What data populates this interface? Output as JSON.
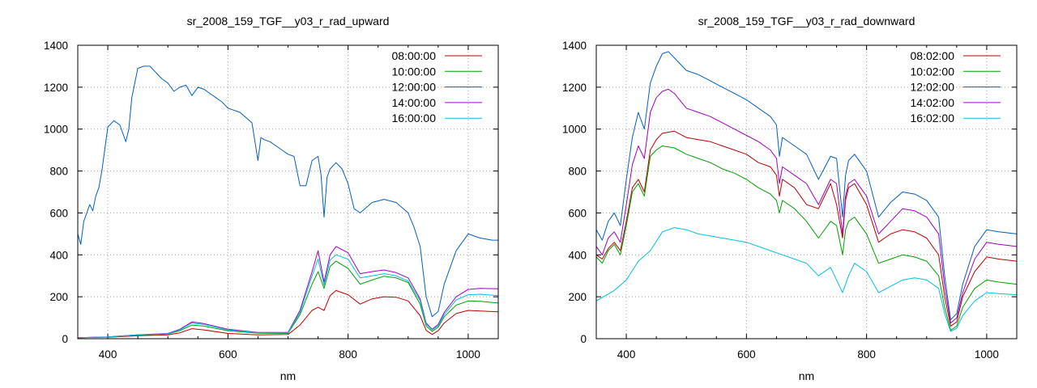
{
  "chart_data": [
    {
      "type": "line",
      "title": "sr_2008_159_TGF__y03_r_rad_upward",
      "xlabel": "nm",
      "ylabel": "",
      "xlim": [
        350,
        1050
      ],
      "ylim": [
        0,
        1400
      ],
      "xticks": [
        400,
        600,
        800,
        1000
      ],
      "yticks": [
        0,
        200,
        400,
        600,
        800,
        1000,
        1200,
        1400
      ],
      "grid": true,
      "legend_position": "top-right",
      "series": [
        {
          "name": "08:00:00",
          "color": "#c00000",
          "x": [
            350,
            400,
            450,
            500,
            520,
            540,
            560,
            600,
            650,
            700,
            720,
            740,
            750,
            760,
            770,
            780,
            800,
            820,
            840,
            860,
            880,
            900,
            920,
            930,
            940,
            950,
            960,
            980,
            1000,
            1020,
            1050
          ],
          "y": [
            5,
            7,
            14,
            18,
            28,
            48,
            42,
            25,
            18,
            20,
            65,
            135,
            150,
            135,
            205,
            230,
            210,
            165,
            190,
            200,
            198,
            180,
            110,
            40,
            20,
            38,
            75,
            120,
            135,
            132,
            128
          ]
        },
        {
          "name": "10:00:00",
          "color": "#00a000",
          "x": [
            350,
            400,
            450,
            500,
            520,
            540,
            560,
            600,
            650,
            700,
            720,
            740,
            750,
            760,
            770,
            780,
            800,
            820,
            840,
            860,
            880,
            900,
            920,
            930,
            940,
            950,
            960,
            980,
            1000,
            1020,
            1050
          ],
          "y": [
            5,
            8,
            17,
            22,
            38,
            65,
            60,
            38,
            26,
            25,
            115,
            260,
            320,
            240,
            345,
            370,
            335,
            260,
            280,
            298,
            290,
            268,
            165,
            60,
            35,
            55,
            105,
            160,
            180,
            178,
            170
          ]
        },
        {
          "name": "12:00:00",
          "color": "#0060c0",
          "x": [
            350,
            355,
            360,
            365,
            370,
            375,
            380,
            385,
            390,
            400,
            410,
            420,
            430,
            435,
            440,
            450,
            460,
            470,
            480,
            490,
            500,
            510,
            520,
            530,
            540,
            550,
            560,
            570,
            580,
            590,
            600,
            620,
            640,
            650,
            655,
            660,
            670,
            680,
            690,
            700,
            710,
            720,
            730,
            740,
            750,
            755,
            760,
            765,
            770,
            780,
            790,
            800,
            810,
            820,
            840,
            860,
            880,
            900,
            910,
            920,
            930,
            940,
            950,
            960,
            980,
            1000,
            1020,
            1040,
            1050
          ],
          "y": [
            500,
            450,
            560,
            600,
            640,
            610,
            680,
            720,
            800,
            1010,
            1040,
            1020,
            940,
            1000,
            1150,
            1290,
            1300,
            1300,
            1270,
            1240,
            1220,
            1180,
            1200,
            1210,
            1160,
            1200,
            1190,
            1170,
            1150,
            1130,
            1100,
            1080,
            1030,
            850,
            960,
            950,
            940,
            920,
            900,
            880,
            870,
            730,
            730,
            850,
            870,
            780,
            580,
            770,
            810,
            840,
            810,
            740,
            620,
            600,
            650,
            665,
            650,
            600,
            530,
            440,
            200,
            105,
            130,
            260,
            420,
            500,
            480,
            470,
            470
          ]
        },
        {
          "name": "14:00:00",
          "color": "#a000c0",
          "x": [
            350,
            400,
            450,
            500,
            520,
            540,
            560,
            600,
            650,
            700,
            720,
            740,
            750,
            760,
            770,
            780,
            800,
            820,
            840,
            860,
            880,
            900,
            920,
            930,
            940,
            950,
            960,
            980,
            1000,
            1020,
            1050
          ],
          "y": [
            5,
            9,
            19,
            25,
            45,
            80,
            72,
            45,
            30,
            30,
            135,
            320,
            420,
            270,
            400,
            440,
            410,
            310,
            320,
            328,
            315,
            290,
            190,
            75,
            45,
            68,
            125,
            200,
            235,
            240,
            238
          ]
        },
        {
          "name": "16:00:00",
          "color": "#00c0e0",
          "x": [
            350,
            400,
            450,
            500,
            520,
            540,
            560,
            600,
            650,
            700,
            720,
            740,
            750,
            760,
            770,
            780,
            800,
            820,
            840,
            860,
            880,
            900,
            920,
            930,
            940,
            950,
            960,
            980,
            1000,
            1020,
            1050
          ],
          "y": [
            5,
            8,
            18,
            23,
            42,
            75,
            68,
            42,
            28,
            28,
            125,
            300,
            380,
            255,
            375,
            400,
            380,
            290,
            300,
            310,
            300,
            275,
            180,
            70,
            42,
            62,
            115,
            185,
            210,
            212,
            205
          ]
        }
      ]
    },
    {
      "type": "line",
      "title": "sr_2008_159_TGF__y03_r_rad_downward",
      "xlabel": "nm",
      "ylabel": "",
      "xlim": [
        350,
        1050
      ],
      "ylim": [
        0,
        1400
      ],
      "xticks": [
        400,
        600,
        800,
        1000
      ],
      "yticks": [
        0,
        200,
        400,
        600,
        800,
        1000,
        1200,
        1400
      ],
      "grid": true,
      "legend_position": "top-right",
      "series": [
        {
          "name": "08:02:00",
          "color": "#c00000",
          "x": [
            350,
            360,
            370,
            380,
            390,
            400,
            410,
            420,
            430,
            440,
            450,
            460,
            480,
            500,
            520,
            540,
            560,
            580,
            600,
            620,
            640,
            650,
            655,
            660,
            680,
            700,
            720,
            740,
            750,
            760,
            765,
            770,
            780,
            800,
            820,
            840,
            860,
            880,
            900,
            920,
            930,
            940,
            950,
            960,
            980,
            1000,
            1020,
            1050
          ],
          "y": [
            400,
            380,
            430,
            460,
            420,
            560,
            720,
            760,
            700,
            900,
            950,
            980,
            990,
            960,
            950,
            940,
            920,
            900,
            880,
            840,
            820,
            780,
            680,
            760,
            720,
            640,
            620,
            740,
            640,
            480,
            660,
            720,
            740,
            640,
            460,
            500,
            520,
            510,
            480,
            400,
            200,
            60,
            80,
            200,
            320,
            390,
            380,
            370
          ]
        },
        {
          "name": "10:02:00",
          "color": "#00a000",
          "x": [
            350,
            360,
            370,
            380,
            390,
            400,
            410,
            420,
            430,
            440,
            450,
            460,
            480,
            500,
            520,
            540,
            560,
            580,
            600,
            620,
            640,
            650,
            655,
            660,
            680,
            700,
            720,
            740,
            750,
            760,
            765,
            770,
            780,
            800,
            820,
            840,
            860,
            880,
            900,
            920,
            930,
            940,
            950,
            960,
            980,
            1000,
            1020,
            1050
          ],
          "y": [
            390,
            360,
            420,
            450,
            400,
            540,
            700,
            740,
            680,
            870,
            900,
            920,
            910,
            880,
            860,
            840,
            810,
            790,
            760,
            720,
            690,
            660,
            600,
            660,
            620,
            560,
            480,
            560,
            540,
            400,
            520,
            560,
            580,
            500,
            360,
            380,
            400,
            390,
            370,
            300,
            150,
            40,
            60,
            150,
            240,
            280,
            270,
            260
          ]
        },
        {
          "name": "12:02:00",
          "color": "#0060c0",
          "x": [
            350,
            360,
            370,
            380,
            390,
            400,
            410,
            420,
            430,
            440,
            450,
            460,
            470,
            480,
            500,
            520,
            540,
            560,
            580,
            600,
            620,
            640,
            650,
            655,
            660,
            680,
            700,
            720,
            740,
            750,
            760,
            765,
            770,
            780,
            800,
            820,
            840,
            860,
            880,
            900,
            920,
            930,
            940,
            950,
            960,
            980,
            1000,
            1020,
            1050
          ],
          "y": [
            520,
            470,
            560,
            600,
            540,
            760,
            960,
            1080,
            1000,
            1220,
            1300,
            1360,
            1370,
            1340,
            1280,
            1260,
            1230,
            1200,
            1170,
            1140,
            1100,
            1060,
            1020,
            870,
            960,
            920,
            880,
            760,
            870,
            860,
            580,
            780,
            850,
            880,
            800,
            580,
            650,
            700,
            690,
            660,
            580,
            300,
            90,
            120,
            260,
            440,
            520,
            510,
            500
          ]
        },
        {
          "name": "14:02:00",
          "color": "#a000c0",
          "x": [
            350,
            360,
            370,
            380,
            390,
            400,
            410,
            420,
            430,
            440,
            450,
            460,
            470,
            480,
            500,
            520,
            540,
            560,
            580,
            600,
            620,
            640,
            650,
            655,
            660,
            680,
            700,
            720,
            740,
            750,
            760,
            765,
            770,
            780,
            800,
            820,
            840,
            860,
            880,
            900,
            920,
            930,
            940,
            950,
            960,
            980,
            1000,
            1020,
            1050
          ],
          "y": [
            440,
            400,
            480,
            510,
            460,
            640,
            830,
            920,
            860,
            1080,
            1150,
            1180,
            1190,
            1170,
            1100,
            1080,
            1060,
            1030,
            1000,
            970,
            940,
            900,
            860,
            740,
            820,
            780,
            740,
            640,
            760,
            740,
            500,
            680,
            740,
            760,
            680,
            500,
            560,
            620,
            610,
            580,
            500,
            250,
            75,
            100,
            220,
            380,
            460,
            450,
            440
          ]
        },
        {
          "name": "16:02:00",
          "color": "#00c0e0",
          "x": [
            350,
            380,
            400,
            420,
            440,
            460,
            480,
            500,
            520,
            540,
            560,
            580,
            600,
            620,
            640,
            660,
            680,
            700,
            720,
            740,
            760,
            770,
            780,
            800,
            820,
            840,
            860,
            880,
            900,
            920,
            930,
            940,
            950,
            960,
            980,
            1000,
            1020,
            1050
          ],
          "y": [
            180,
            230,
            280,
            370,
            420,
            510,
            530,
            520,
            500,
            490,
            480,
            470,
            460,
            440,
            420,
            400,
            380,
            360,
            300,
            340,
            220,
            300,
            360,
            320,
            220,
            250,
            280,
            290,
            280,
            240,
            120,
            35,
            50,
            110,
            180,
            220,
            215,
            210
          ]
        }
      ]
    }
  ]
}
